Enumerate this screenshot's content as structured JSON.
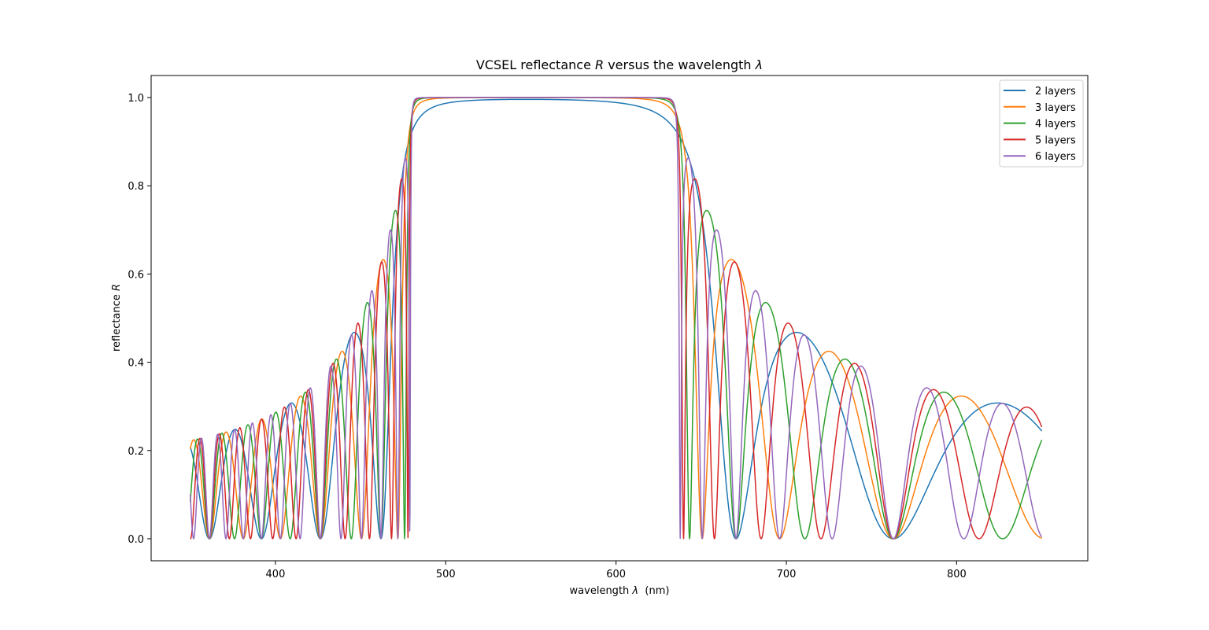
{
  "chart_data": {
    "type": "line",
    "title": "VCSEL reflectance R versus the wavelength λ",
    "title_parts": {
      "lead": "VCSEL reflectance ",
      "var1": "R",
      "mid": " versus the wavelength ",
      "var2": "λ"
    },
    "xlabel": "wavelength λ  (nm)",
    "xlabel_parts": {
      "lead": "wavelength ",
      "var": "λ",
      "tail": "  (nm)"
    },
    "ylabel": "reflectance R",
    "ylabel_parts": {
      "lead": "reflectance ",
      "var": "R"
    },
    "xlim": [
      327,
      877
    ],
    "ylim": [
      -0.05,
      1.05
    ],
    "xticks": [
      400,
      500,
      600,
      700,
      800
    ],
    "xtick_labels": [
      "400",
      "500",
      "600",
      "700",
      "800"
    ],
    "yticks": [
      0.0,
      0.2,
      0.4,
      0.6,
      0.8,
      1.0
    ],
    "ytick_labels": [
      "0.0",
      "0.2",
      "0.4",
      "0.6",
      "0.8",
      "1.0"
    ],
    "grid": false,
    "legend_position": "upper-right",
    "stopband_nm": [
      469.5,
      662.5
    ],
    "x_range_nm": [
      350,
      850
    ],
    "series": [
      {
        "name": "2 layers",
        "color": "#1f77b4",
        "peak_reflectance": 0.945,
        "left_envelope_peak": 0.19,
        "left_min_nm": [
          360,
          423
        ],
        "right_min_nm": [
          784
        ]
      },
      {
        "name": "3 layers",
        "color": "#ff7f0e",
        "peak_reflectance": 0.998,
        "right_max": 0.475,
        "right_min_nm": [
          695,
          784
        ]
      },
      {
        "name": "4 layers",
        "color": "#2ca02c",
        "peak_reflectance": 1.0,
        "right_max": 0.555,
        "right_min_nm": [
          695,
          734,
          784
        ]
      },
      {
        "name": "5 layers",
        "color": "#d62728",
        "peak_reflectance": 1.0,
        "right_max": 0.6
      },
      {
        "name": "6 layers",
        "color": "#9467bd",
        "peak_reflectance": 1.0,
        "right_max": 0.76
      }
    ]
  }
}
